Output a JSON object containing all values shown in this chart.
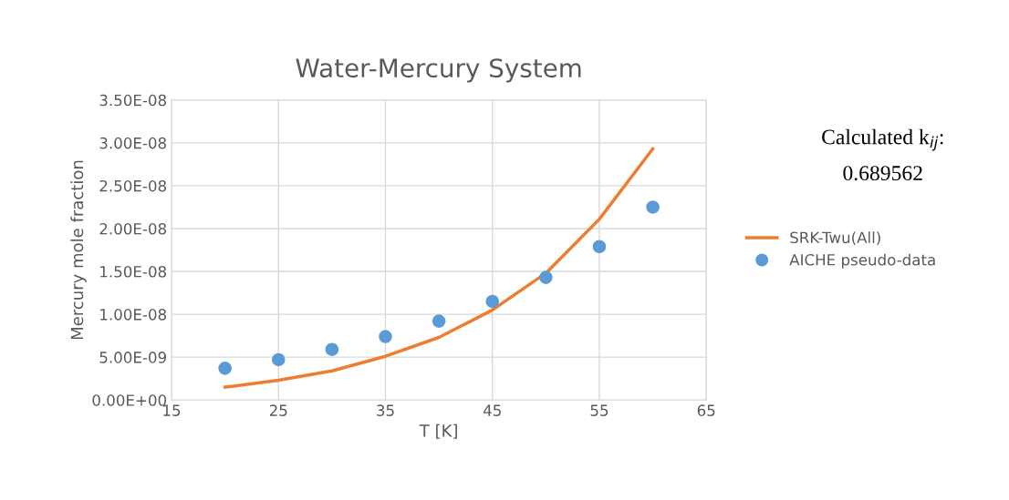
{
  "chart_data": {
    "type": "line",
    "title": "Water-Mercury System",
    "xlabel": "T [K]",
    "ylabel": "Mercury mole fraction",
    "annotations": [
      "Calculated k$_{ij}$:",
      "0.689562"
    ],
    "series": [
      {
        "name": "SRK-Twu(All)",
        "color": "#ed7d31",
        "x": [
          20,
          25,
          30,
          35,
          40,
          45,
          50,
          55,
          60
        ],
        "values": [
          1.5e-09,
          2.3e-09,
          3.4e-09,
          5.1e-09,
          7.3e-09,
          1.05e-08,
          1.48e-08,
          2.11e-08,
          2.93e-08
        ]
      },
      {
        "name": "AICHE pseudo-data",
        "type": "scatter",
        "marker": "circle",
        "color": "#5b9bd5",
        "x": [
          20,
          25,
          30,
          35,
          40,
          45,
          50,
          55,
          60
        ],
        "values": [
          3.7e-09,
          4.7e-09,
          5.9e-09,
          7.4e-09,
          9.2e-09,
          1.15e-08,
          1.43e-08,
          1.79e-08,
          2.25e-08
        ]
      }
    ],
    "xlim": [
      15,
      65
    ],
    "xticks": [
      15,
      25,
      35,
      45,
      55,
      65
    ],
    "ylim": [
      0,
      3.5e-08
    ],
    "yticks": [
      {
        "value": 0,
        "label": "0.00E+00"
      },
      {
        "value": 5e-09,
        "label": "5.00E-09"
      },
      {
        "value": 1e-08,
        "label": "1.00E-08"
      },
      {
        "value": 1.5e-08,
        "label": "1.50E-08"
      },
      {
        "value": 2e-08,
        "label": "2.00E-08"
      },
      {
        "value": 2.5e-08,
        "label": "2.50E-08"
      },
      {
        "value": 3e-08,
        "label": "3.00E-08"
      },
      {
        "value": 3.5e-08,
        "label": "3.50E-08"
      }
    ],
    "grid": true,
    "legend": "right"
  }
}
